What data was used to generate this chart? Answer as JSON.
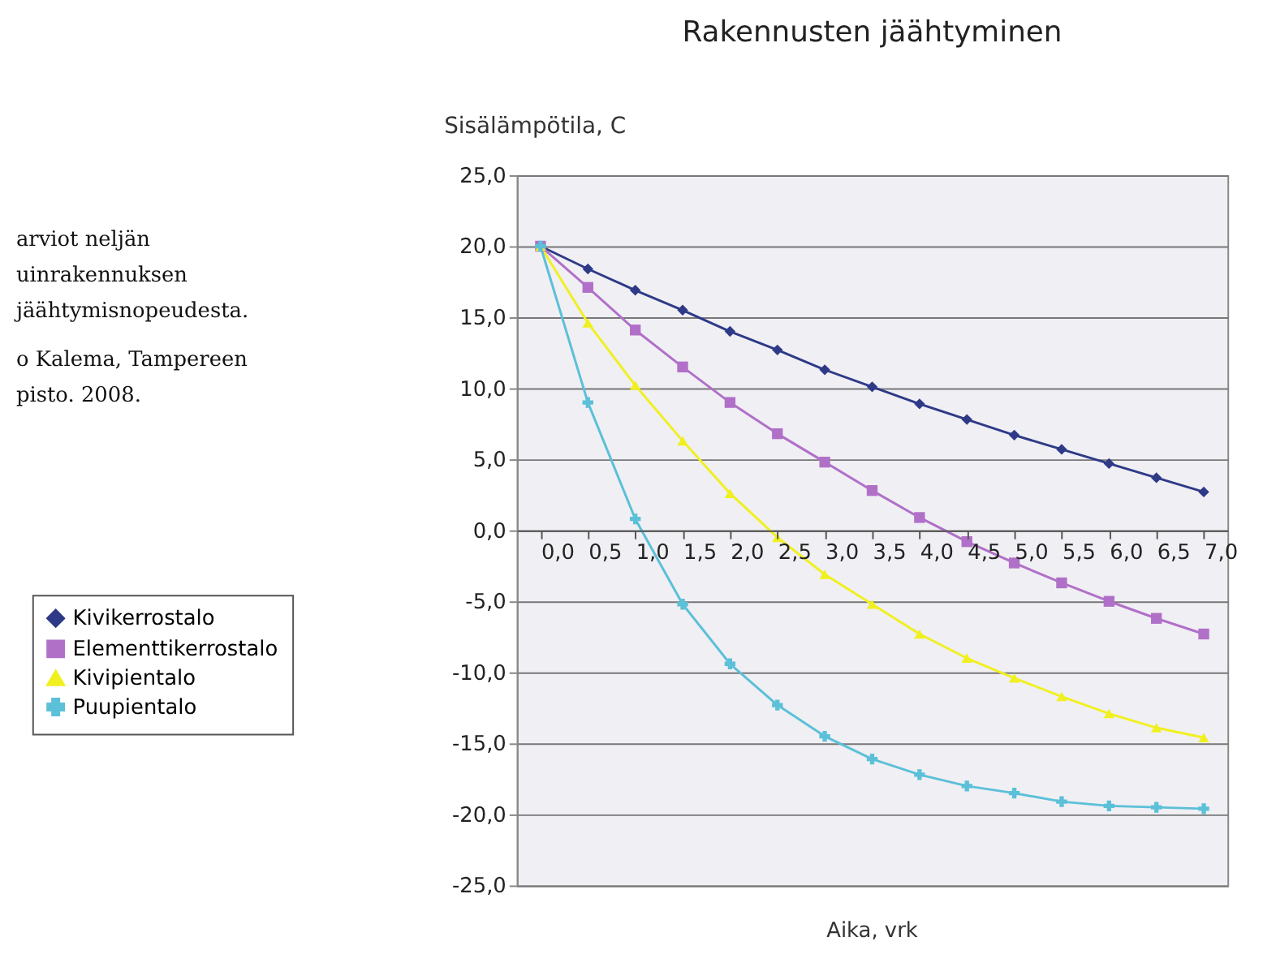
{
  "chart_data": {
    "type": "line",
    "title": "Rakennusten jäähtyminen",
    "ylabel": "Sisälämpötila, C",
    "xlabel": "Aika, vrk",
    "categories": [
      "0,0",
      "0,5",
      "1,0",
      "1,5",
      "2,0",
      "2,5",
      "3,0",
      "3,5",
      "4,0",
      "4,5",
      "5,0",
      "5,5",
      "6,0",
      "6,5",
      "7,0"
    ],
    "series": [
      {
        "name": "Kivikerrostalo",
        "color": "#2e3a87",
        "marker": "diamond",
        "values": [
          20,
          18.4,
          16.9,
          15.5,
          14.0,
          12.7,
          11.3,
          10.1,
          8.9,
          7.8,
          6.7,
          5.7,
          4.7,
          3.7,
          2.7
        ]
      },
      {
        "name": "Elementtikerrostalo",
        "color": "#b070c8",
        "marker": "square",
        "values": [
          20,
          17.1,
          14.1,
          11.5,
          9.0,
          6.8,
          4.8,
          2.8,
          0.9,
          -0.8,
          -2.3,
          -3.7,
          -5.0,
          -6.2,
          -7.3
        ]
      },
      {
        "name": "Kivipientalo",
        "color": "#f0f020",
        "marker": "triangle",
        "values": [
          20,
          14.6,
          10.2,
          6.3,
          2.6,
          -0.5,
          -3.1,
          -5.2,
          -7.3,
          -9.0,
          -10.4,
          -11.7,
          -12.9,
          -13.9,
          -14.6
        ]
      },
      {
        "name": "Puupientalo",
        "color": "#5bc0d8",
        "marker": "cross",
        "values": [
          20,
          9.0,
          0.8,
          -5.2,
          -9.4,
          -12.3,
          -14.5,
          -16.1,
          -17.2,
          -18.0,
          -18.5,
          -19.1,
          -19.4,
          -19.5,
          -19.6
        ]
      }
    ],
    "ylim": [
      -25,
      25
    ],
    "yticks": [
      {
        "value": 25,
        "label": "25,0"
      },
      {
        "value": 20,
        "label": "20,0"
      },
      {
        "value": 15,
        "label": "15,0"
      },
      {
        "value": 10,
        "label": "10,0"
      },
      {
        "value": 5,
        "label": "5,0"
      },
      {
        "value": 0,
        "label": "0,0"
      },
      {
        "value": -5,
        "label": "-5,0"
      },
      {
        "value": -10,
        "label": "-10,0"
      },
      {
        "value": -15,
        "label": "-15,0"
      },
      {
        "value": -20,
        "label": "-20,0"
      },
      {
        "value": -25,
        "label": "-25,0"
      }
    ],
    "grid": "y",
    "legend": "left",
    "line_style": "solid",
    "annotations": [
      "arviot neljän",
      "uinrakennuksen",
      "jäähtymisnopeudesta.",
      "o Kalema, Tampereen",
      "pisto. 2008."
    ]
  }
}
